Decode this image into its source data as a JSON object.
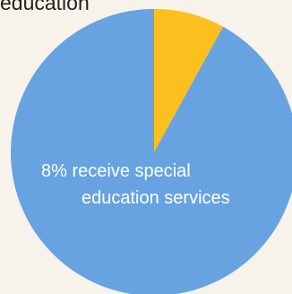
{
  "top_label": "education",
  "colors": {
    "background": "#f7f2ea",
    "primary_slice": "#66a3e0",
    "accent_slice": "#fbbf1e",
    "label_text": "#ffffff"
  },
  "chart_data": {
    "type": "pie",
    "slices": [
      {
        "value": 8,
        "color": "#fbbf1e"
      },
      {
        "value": 92,
        "color": "#66a3e0"
      }
    ],
    "annotations": [
      {
        "line1_value": "8%",
        "line1_rest": " receive special",
        "line2": "education services"
      }
    ]
  }
}
